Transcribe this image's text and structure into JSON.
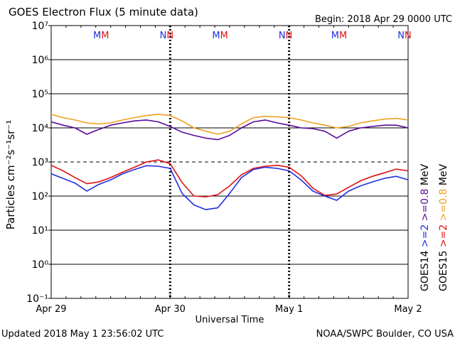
{
  "title": "GOES Electron Flux (5 minute data)",
  "begin_label": "Begin: 2018 Apr 29 0000 UTC",
  "footer": {
    "updated": "Updated 2018 May  1 23:56:02 UTC",
    "credit": "NOAA/SWPC Boulder, CO USA"
  },
  "colors": {
    "goes14_high": "#1f2ee0",
    "goes15_high": "#e01010",
    "goes14_low": "#5a0a9a",
    "goes15_low": "#f0a020",
    "marker_m_blue": "#1f2ee0",
    "marker_m_red": "#e01010",
    "marker_n_blue": "#1f2ee0",
    "marker_n_red": "#e01010"
  },
  "markers": [
    {
      "x": 0.42,
      "letters": [
        {
          "t": "M",
          "c": "#1f2ee0"
        },
        {
          "t": "M",
          "c": "#e01010"
        }
      ]
    },
    {
      "x": 0.97,
      "letters": [
        {
          "t": "N",
          "c": "#1f2ee0"
        },
        {
          "t": "N",
          "c": "#e01010"
        }
      ]
    },
    {
      "x": 1.42,
      "letters": [
        {
          "t": "M",
          "c": "#1f2ee0"
        },
        {
          "t": "M",
          "c": "#e01010"
        }
      ]
    },
    {
      "x": 1.97,
      "letters": [
        {
          "t": "N",
          "c": "#1f2ee0"
        },
        {
          "t": "N",
          "c": "#e01010"
        }
      ]
    },
    {
      "x": 2.42,
      "letters": [
        {
          "t": "M",
          "c": "#1f2ee0"
        },
        {
          "t": "M",
          "c": "#e01010"
        }
      ]
    },
    {
      "x": 2.97,
      "letters": [
        {
          "t": "N",
          "c": "#1f2ee0"
        },
        {
          "t": "N",
          "c": "#e01010"
        }
      ]
    }
  ],
  "right_legend": [
    {
      "text": "GOES14",
      "color": "#000000"
    },
    {
      "text": "GOES15",
      "color": "#000000"
    },
    {
      "text": ">=2",
      "color": "#1f2ee0"
    },
    {
      "text": ">=2",
      "color": "#e01010"
    },
    {
      "text": ">=0.8",
      "color": "#5a0a9a"
    },
    {
      "text": ">=0.8",
      "color": "#f0a020"
    },
    {
      "text": "MeV",
      "color": "#000000"
    },
    {
      "text": "MeV",
      "color": "#000000"
    }
  ],
  "chart_data": {
    "type": "line",
    "title": "GOES Electron Flux (5 minute data)",
    "xlabel": "Universal Time",
    "ylabel": "Particles cm⁻²s⁻¹sr⁻¹",
    "y_scale": "log",
    "ylim_exponents": [
      -1,
      7
    ],
    "x_range_days": [
      0,
      3
    ],
    "x_ticks": [
      {
        "x": 0,
        "label": "Apr 29"
      },
      {
        "x": 1,
        "label": "Apr 30"
      },
      {
        "x": 2,
        "label": "May 1"
      },
      {
        "x": 3,
        "label": "May 2"
      }
    ],
    "y_ticks": [
      {
        "exp": 7,
        "label": "10⁷"
      },
      {
        "exp": 6,
        "label": "10⁶"
      },
      {
        "exp": 5,
        "label": "10⁵"
      },
      {
        "exp": 4,
        "label": "10⁴"
      },
      {
        "exp": 3,
        "label": "10³"
      },
      {
        "exp": 2,
        "label": "10²"
      },
      {
        "exp": 1,
        "label": "10¹"
      },
      {
        "exp": 0,
        "label": "10⁰"
      },
      {
        "exp": -1,
        "label": "10⁻¹"
      }
    ],
    "threshold_exp": 3,
    "day_boundaries": [
      1,
      2
    ],
    "grid": "horizontal at each decade",
    "series": [
      {
        "key": "goes15_low",
        "color": "#f0a020",
        "x": [
          0.0,
          0.1,
          0.2,
          0.3,
          0.4,
          0.5,
          0.6,
          0.7,
          0.8,
          0.9,
          1.0,
          1.1,
          1.2,
          1.3,
          1.4,
          1.5,
          1.6,
          1.7,
          1.8,
          1.9,
          2.0,
          2.1,
          2.2,
          2.3,
          2.4,
          2.5,
          2.6,
          2.7,
          2.8,
          2.9,
          3.0
        ],
        "y": [
          25000,
          20000,
          17000,
          14000,
          13000,
          14000,
          17000,
          20000,
          23000,
          25000,
          23000,
          16000,
          10000,
          8000,
          6500,
          8000,
          13000,
          20000,
          22000,
          21000,
          20000,
          17000,
          14000,
          12000,
          10000,
          11000,
          14000,
          16000,
          18000,
          19000,
          17000
        ]
      },
      {
        "key": "goes14_low",
        "color": "#5a0a9a",
        "x": [
          0.0,
          0.1,
          0.2,
          0.3,
          0.4,
          0.5,
          0.6,
          0.7,
          0.8,
          0.9,
          1.0,
          1.1,
          1.2,
          1.3,
          1.4,
          1.5,
          1.6,
          1.7,
          1.8,
          1.9,
          2.0,
          2.1,
          2.2,
          2.3,
          2.4,
          2.5,
          2.6,
          2.7,
          2.8,
          2.9,
          3.0
        ],
        "y": [
          15000,
          12000,
          10000,
          6500,
          9000,
          12000,
          14000,
          16000,
          17000,
          15000,
          11000,
          7500,
          6000,
          5000,
          4500,
          6000,
          10000,
          15000,
          17000,
          14000,
          12000,
          10000,
          9500,
          8000,
          5000,
          8000,
          10000,
          11000,
          12000,
          12000,
          10000
        ]
      },
      {
        "key": "goes15_high",
        "color": "#e01010",
        "x": [
          0.0,
          0.1,
          0.2,
          0.3,
          0.4,
          0.5,
          0.6,
          0.7,
          0.8,
          0.9,
          1.0,
          1.1,
          1.2,
          1.3,
          1.4,
          1.5,
          1.6,
          1.7,
          1.8,
          1.9,
          2.0,
          2.1,
          2.2,
          2.3,
          2.4,
          2.5,
          2.6,
          2.7,
          2.8,
          2.9,
          3.0
        ],
        "y": [
          800,
          550,
          350,
          230,
          260,
          350,
          500,
          700,
          1000,
          1150,
          900,
          250,
          100,
          95,
          110,
          200,
          420,
          650,
          750,
          800,
          700,
          400,
          170,
          105,
          115,
          180,
          280,
          380,
          480,
          620,
          550
        ]
      },
      {
        "key": "goes14_high",
        "color": "#1f2ee0",
        "x": [
          0.0,
          0.1,
          0.2,
          0.3,
          0.4,
          0.5,
          0.6,
          0.7,
          0.8,
          0.9,
          1.0,
          1.1,
          1.2,
          1.3,
          1.4,
          1.5,
          1.6,
          1.7,
          1.8,
          1.9,
          2.0,
          2.1,
          2.2,
          2.3,
          2.4,
          2.5,
          2.6,
          2.7,
          2.8,
          2.9,
          3.0
        ],
        "y": [
          450,
          330,
          240,
          140,
          220,
          300,
          450,
          600,
          780,
          750,
          650,
          120,
          55,
          40,
          45,
          120,
          350,
          600,
          700,
          650,
          550,
          300,
          140,
          100,
          75,
          140,
          200,
          260,
          330,
          380,
          300
        ]
      }
    ]
  }
}
